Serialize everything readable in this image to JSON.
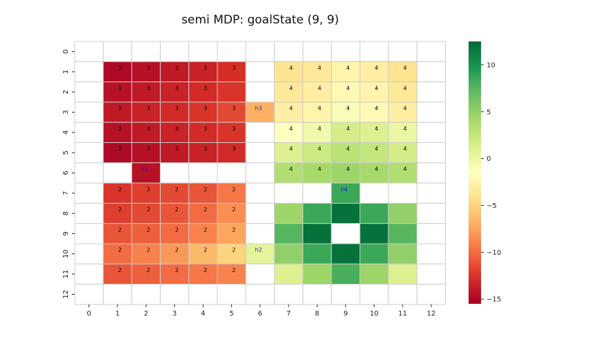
{
  "chart_data": {
    "type": "heatmap",
    "title": "semi MDP: goalState (9, 9)",
    "x_ticks": [
      "0",
      "1",
      "2",
      "3",
      "4",
      "5",
      "6",
      "7",
      "8",
      "9",
      "10",
      "11",
      "12"
    ],
    "y_ticks": [
      "0",
      "1",
      "2",
      "3",
      "4",
      "5",
      "6",
      "7",
      "8",
      "9",
      "10",
      "11",
      "12"
    ],
    "colormap": "RdYlGn",
    "vmin": -15.5,
    "vmax": 12.5,
    "colorbar_ticks": [
      "10",
      "5",
      "0",
      "−5",
      "−10",
      "−15"
    ],
    "colorbar_tick_values": [
      10,
      5,
      0,
      -5,
      -10,
      -15
    ],
    "values": [
      [
        null,
        null,
        null,
        null,
        null,
        null,
        null,
        null,
        null,
        null,
        null,
        null,
        null
      ],
      [
        null,
        -15.0,
        -14.5,
        -14.0,
        -13.5,
        -12.8,
        null,
        -4.0,
        -3.5,
        -2.5,
        -3.0,
        -4.0,
        null
      ],
      [
        null,
        -14.5,
        -14.0,
        -13.5,
        -13.0,
        -12.5,
        null,
        -3.5,
        -3.0,
        -2.0,
        -2.5,
        -3.5,
        null
      ],
      [
        null,
        -14.0,
        -13.5,
        -13.0,
        -12.5,
        -11.5,
        -7.0,
        -3.0,
        -2.5,
        -1.0,
        -2.0,
        -3.0,
        null
      ],
      [
        null,
        -14.5,
        -14.0,
        -13.5,
        -13.0,
        -12.5,
        null,
        -1.5,
        -0.5,
        1.5,
        1.0,
        0.0,
        null
      ],
      [
        null,
        -15.0,
        -14.5,
        -14.0,
        -13.5,
        -13.0,
        null,
        1.0,
        2.0,
        3.0,
        2.5,
        1.5,
        null
      ],
      [
        null,
        null,
        -14.5,
        null,
        null,
        null,
        null,
        3.5,
        4.0,
        4.5,
        4.0,
        3.5,
        null
      ],
      [
        null,
        -12.5,
        -12.0,
        -11.5,
        -11.0,
        -9.5,
        null,
        null,
        null,
        8.5,
        null,
        null,
        null
      ],
      [
        null,
        -12.0,
        -11.5,
        -11.0,
        -10.0,
        -8.5,
        null,
        4.5,
        8.5,
        12.0,
        8.5,
        5.0,
        null
      ],
      [
        null,
        -11.0,
        -10.5,
        -10.0,
        -9.0,
        -7.5,
        null,
        7.5,
        12.0,
        null,
        12.0,
        7.5,
        null
      ],
      [
        null,
        -10.0,
        -9.0,
        -8.0,
        -6.5,
        -5.0,
        0.5,
        5.0,
        8.5,
        12.0,
        8.5,
        5.0,
        null
      ],
      [
        null,
        -11.0,
        -10.5,
        -10.0,
        -9.5,
        -9.0,
        null,
        1.0,
        4.5,
        8.0,
        4.5,
        1.0,
        null
      ],
      [
        null,
        null,
        null,
        null,
        null,
        null,
        null,
        null,
        null,
        null,
        null,
        null,
        null
      ]
    ],
    "labels": [
      [
        "",
        "",
        "",
        "",
        "",
        "",
        "",
        "",
        "",
        "",
        "",
        "",
        ""
      ],
      [
        "",
        "3",
        "3",
        "3",
        "3",
        "3",
        "",
        "4",
        "4",
        "4",
        "4",
        "4",
        ""
      ],
      [
        "",
        "3",
        "3",
        "3",
        "3",
        "",
        "",
        "4",
        "4",
        "4",
        "4",
        "4",
        ""
      ],
      [
        "",
        "3",
        "3",
        "3",
        "3",
        "3",
        "h3",
        "4",
        "4",
        "4",
        "4",
        "4",
        ""
      ],
      [
        "",
        "3",
        "3",
        "3",
        "3",
        "3",
        "",
        "4",
        "4",
        "4",
        "4",
        "4",
        ""
      ],
      [
        "",
        "3",
        "3",
        "3",
        "3",
        "3",
        "",
        "4",
        "4",
        "4",
        "4",
        "4",
        ""
      ],
      [
        "",
        "",
        "h1",
        "",
        "",
        "",
        "",
        "4",
        "4",
        "4",
        "4",
        "4",
        ""
      ],
      [
        "",
        "2",
        "2",
        "2",
        "2",
        "2",
        "",
        "",
        "",
        "h4",
        "",
        "",
        ""
      ],
      [
        "",
        "2",
        "2",
        "2",
        "2",
        "2",
        "",
        "",
        "",
        "",
        "",
        "",
        ""
      ],
      [
        "",
        "2",
        "2",
        "2",
        "2",
        "2",
        "",
        "",
        "",
        "",
        "",
        "",
        ""
      ],
      [
        "",
        "2",
        "2",
        "2",
        "2",
        "2",
        "h2",
        "",
        "",
        "",
        "",
        "",
        ""
      ],
      [
        "",
        "2",
        "2",
        "2",
        "2",
        "2",
        "",
        "",
        "",
        "",
        "",
        "",
        ""
      ],
      [
        "",
        "",
        "",
        "",
        "",
        "",
        "",
        "",
        "",
        "",
        "",
        "",
        ""
      ]
    ]
  }
}
